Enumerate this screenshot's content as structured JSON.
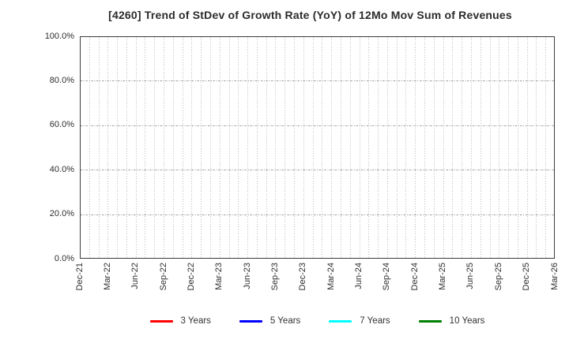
{
  "chart_data": {
    "type": "line",
    "title": "[4260]  Trend of StDev of Growth Rate (YoY) of 12Mo Mov Sum of Revenues",
    "xlabel": "",
    "ylabel": "",
    "ylim": [
      0,
      100
    ],
    "grid": "on",
    "grid_style": "dotted, minor vertical gridline every month",
    "legend_position": "bottom",
    "y_ticks": [
      {
        "value": 0,
        "label": "0.0%"
      },
      {
        "value": 20,
        "label": "20.0%"
      },
      {
        "value": 40,
        "label": "40.0%"
      },
      {
        "value": 60,
        "label": "60.0%"
      },
      {
        "value": 80,
        "label": "80.0%"
      },
      {
        "value": 100,
        "label": "100.0%"
      }
    ],
    "x_tick_labels": [
      "Dec-21",
      "Mar-22",
      "Jun-22",
      "Sep-22",
      "Dec-22",
      "Mar-23",
      "Jun-23",
      "Sep-23",
      "Dec-23",
      "Mar-24",
      "Jun-24",
      "Sep-24",
      "Dec-24",
      "Mar-25",
      "Jun-25",
      "Sep-25",
      "Dec-25",
      "Mar-26"
    ],
    "months_per_x_interval": 3,
    "series": [
      {
        "name": "3 Years",
        "color": "#ff0000",
        "values": []
      },
      {
        "name": "5 Years",
        "color": "#0000ff",
        "values": []
      },
      {
        "name": "7 Years",
        "color": "#00ffff",
        "values": []
      },
      {
        "name": "10 Years",
        "color": "#008000",
        "values": []
      }
    ],
    "note_visible_data": "plot area is empty; no series lines are drawn",
    "colors": {
      "plot_border": "#3c3c3c",
      "vertical_grid": "#b5b5b5",
      "horizontal_grid": "#9e9e9e",
      "title_text": "#2b2b2b",
      "tick_text": "#2e2e2e"
    }
  }
}
